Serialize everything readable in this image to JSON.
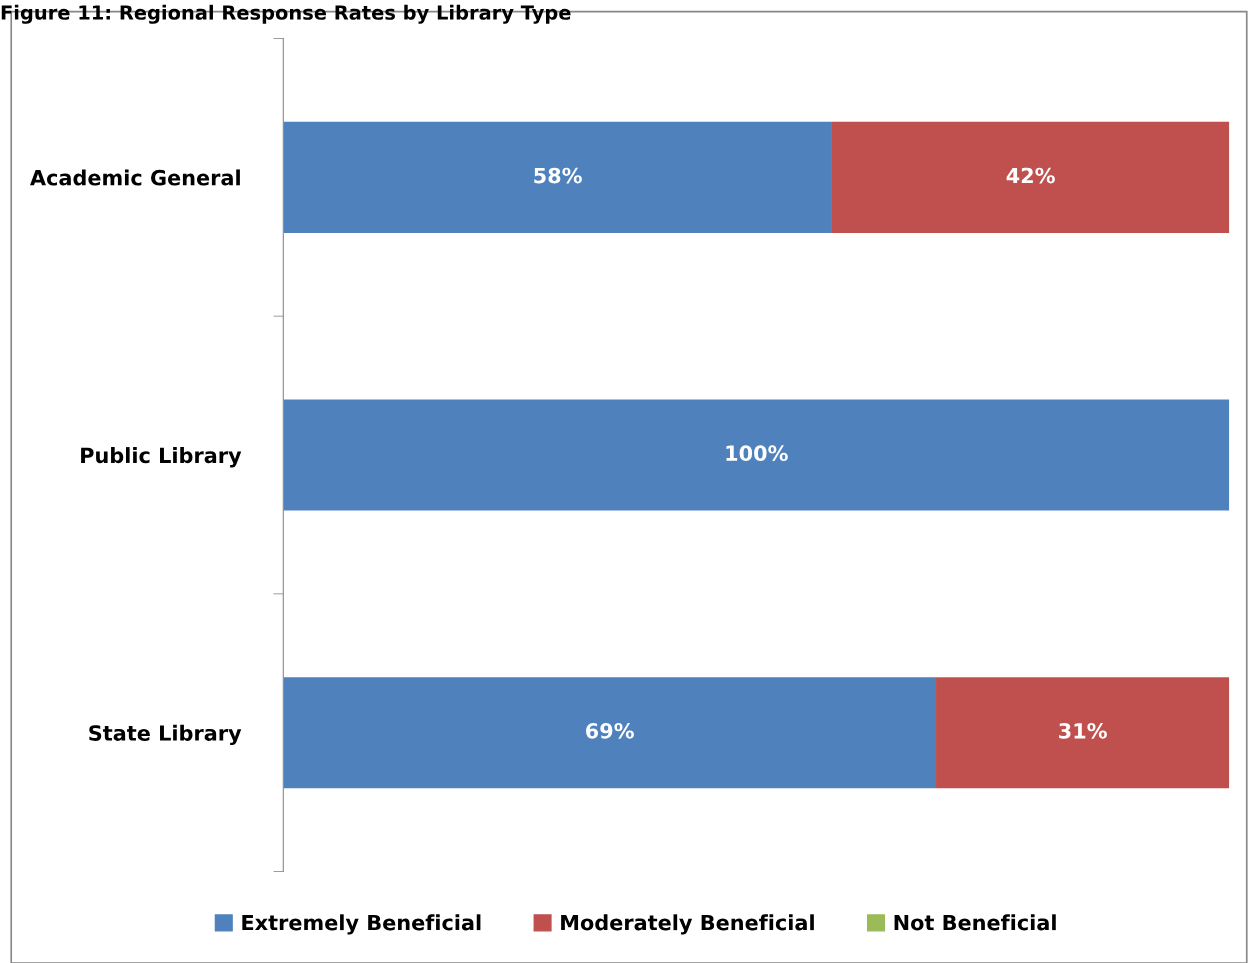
{
  "chart_data": {
    "type": "bar",
    "orientation": "horizontal",
    "stacked": true,
    "title": "Figure 11: Regional Response Rates by Library Type",
    "categories": [
      "Academic General",
      "Public Library",
      "State Library"
    ],
    "series": [
      {
        "name": "Extremely Beneficial",
        "color": "#4f81bd",
        "values": [
          58,
          100,
          69
        ],
        "value_labels": [
          "58%",
          "100%",
          "69%"
        ]
      },
      {
        "name": "Moderately Beneficial",
        "color": "#c0504d",
        "values": [
          42,
          null,
          31
        ],
        "value_labels": [
          "42%",
          null,
          "31%"
        ]
      },
      {
        "name": "Not Beneficial",
        "color": "#9bbb59",
        "values": [
          null,
          null,
          null
        ]
      }
    ],
    "legend": "bottom"
  }
}
